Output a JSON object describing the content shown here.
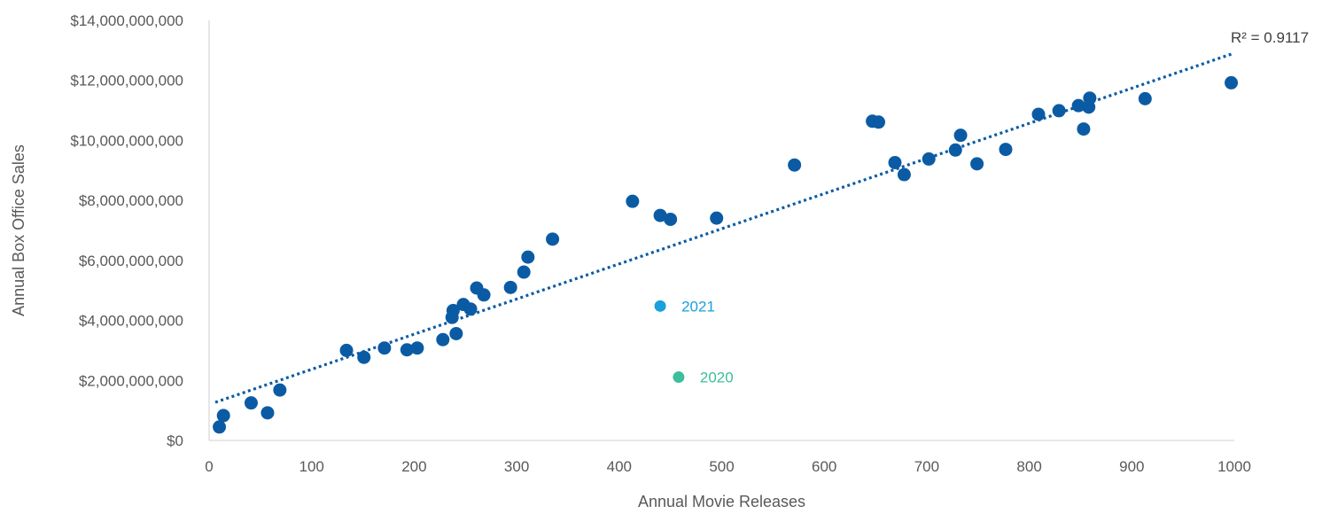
{
  "chart_data": {
    "type": "scatter",
    "xlabel": "Annual Movie Releases",
    "ylabel": "Annual Box Office Sales",
    "xlim": [
      0,
      1000
    ],
    "ylim": [
      0,
      14000000000
    ],
    "x_ticks": [
      0,
      100,
      200,
      300,
      400,
      500,
      600,
      700,
      800,
      900,
      1000
    ],
    "y_ticks": [
      0,
      2000000000,
      4000000000,
      6000000000,
      8000000000,
      10000000000,
      12000000000,
      14000000000
    ],
    "x_tick_labels": [
      "0",
      "100",
      "200",
      "300",
      "400",
      "500",
      "600",
      "700",
      "800",
      "900",
      "1000"
    ],
    "y_tick_labels": [
      "$0",
      "$2,000,000,000",
      "$4,000,000,000",
      "$6,000,000,000",
      "$8,000,000,000",
      "$10,000,000,000",
      "$12,000,000,000",
      "$14,000,000,000"
    ],
    "grid": false,
    "colors": {
      "main": "#0B5BA4",
      "highlight_2021": "#1AA0DB",
      "highlight_2020": "#3DBE9C",
      "axis": "#d9d9d9",
      "text": "#595959"
    },
    "series": [
      {
        "values": [
          [
            10,
            450000000
          ],
          [
            14,
            830000000
          ],
          [
            41,
            1250000000
          ],
          [
            57,
            920000000
          ],
          [
            69,
            1680000000
          ],
          [
            134,
            3000000000
          ],
          [
            151,
            2770000000
          ],
          [
            171,
            3080000000
          ],
          [
            193,
            3020000000
          ],
          [
            203,
            3080000000
          ],
          [
            228,
            3360000000
          ],
          [
            237,
            4100000000
          ],
          [
            238,
            4330000000
          ],
          [
            241,
            3560000000
          ],
          [
            248,
            4530000000
          ],
          [
            255,
            4380000000
          ],
          [
            261,
            5080000000
          ],
          [
            268,
            4850000000
          ],
          [
            294,
            5100000000
          ],
          [
            307,
            5610000000
          ],
          [
            311,
            6110000000
          ],
          [
            335,
            6710000000
          ],
          [
            413,
            7970000000
          ],
          [
            440,
            7500000000
          ],
          [
            450,
            7370000000
          ],
          [
            495,
            7410000000
          ],
          [
            571,
            9180000000
          ],
          [
            647,
            10640000000
          ],
          [
            653,
            10610000000
          ],
          [
            669,
            9260000000
          ],
          [
            678,
            8860000000
          ],
          [
            702,
            9380000000
          ],
          [
            728,
            9680000000
          ],
          [
            733,
            10170000000
          ],
          [
            749,
            9220000000
          ],
          [
            777,
            9700000000
          ],
          [
            809,
            10870000000
          ],
          [
            829,
            10990000000
          ],
          [
            848,
            11160000000
          ],
          [
            853,
            10380000000
          ],
          [
            858,
            11110000000
          ],
          [
            859,
            11410000000
          ],
          [
            913,
            11390000000
          ],
          [
            997,
            11920000000
          ]
        ]
      },
      {
        "name": "2021",
        "values": [
          [
            440,
            4480000000
          ]
        ]
      },
      {
        "name": "2020",
        "values": [
          [
            458,
            2110000000
          ]
        ]
      }
    ],
    "trendline": {
      "style": "dotted",
      "from": [
        0,
        1270000000
      ],
      "to": [
        1000,
        12880000000
      ],
      "r_squared_label": "R² = 0.9117"
    }
  }
}
